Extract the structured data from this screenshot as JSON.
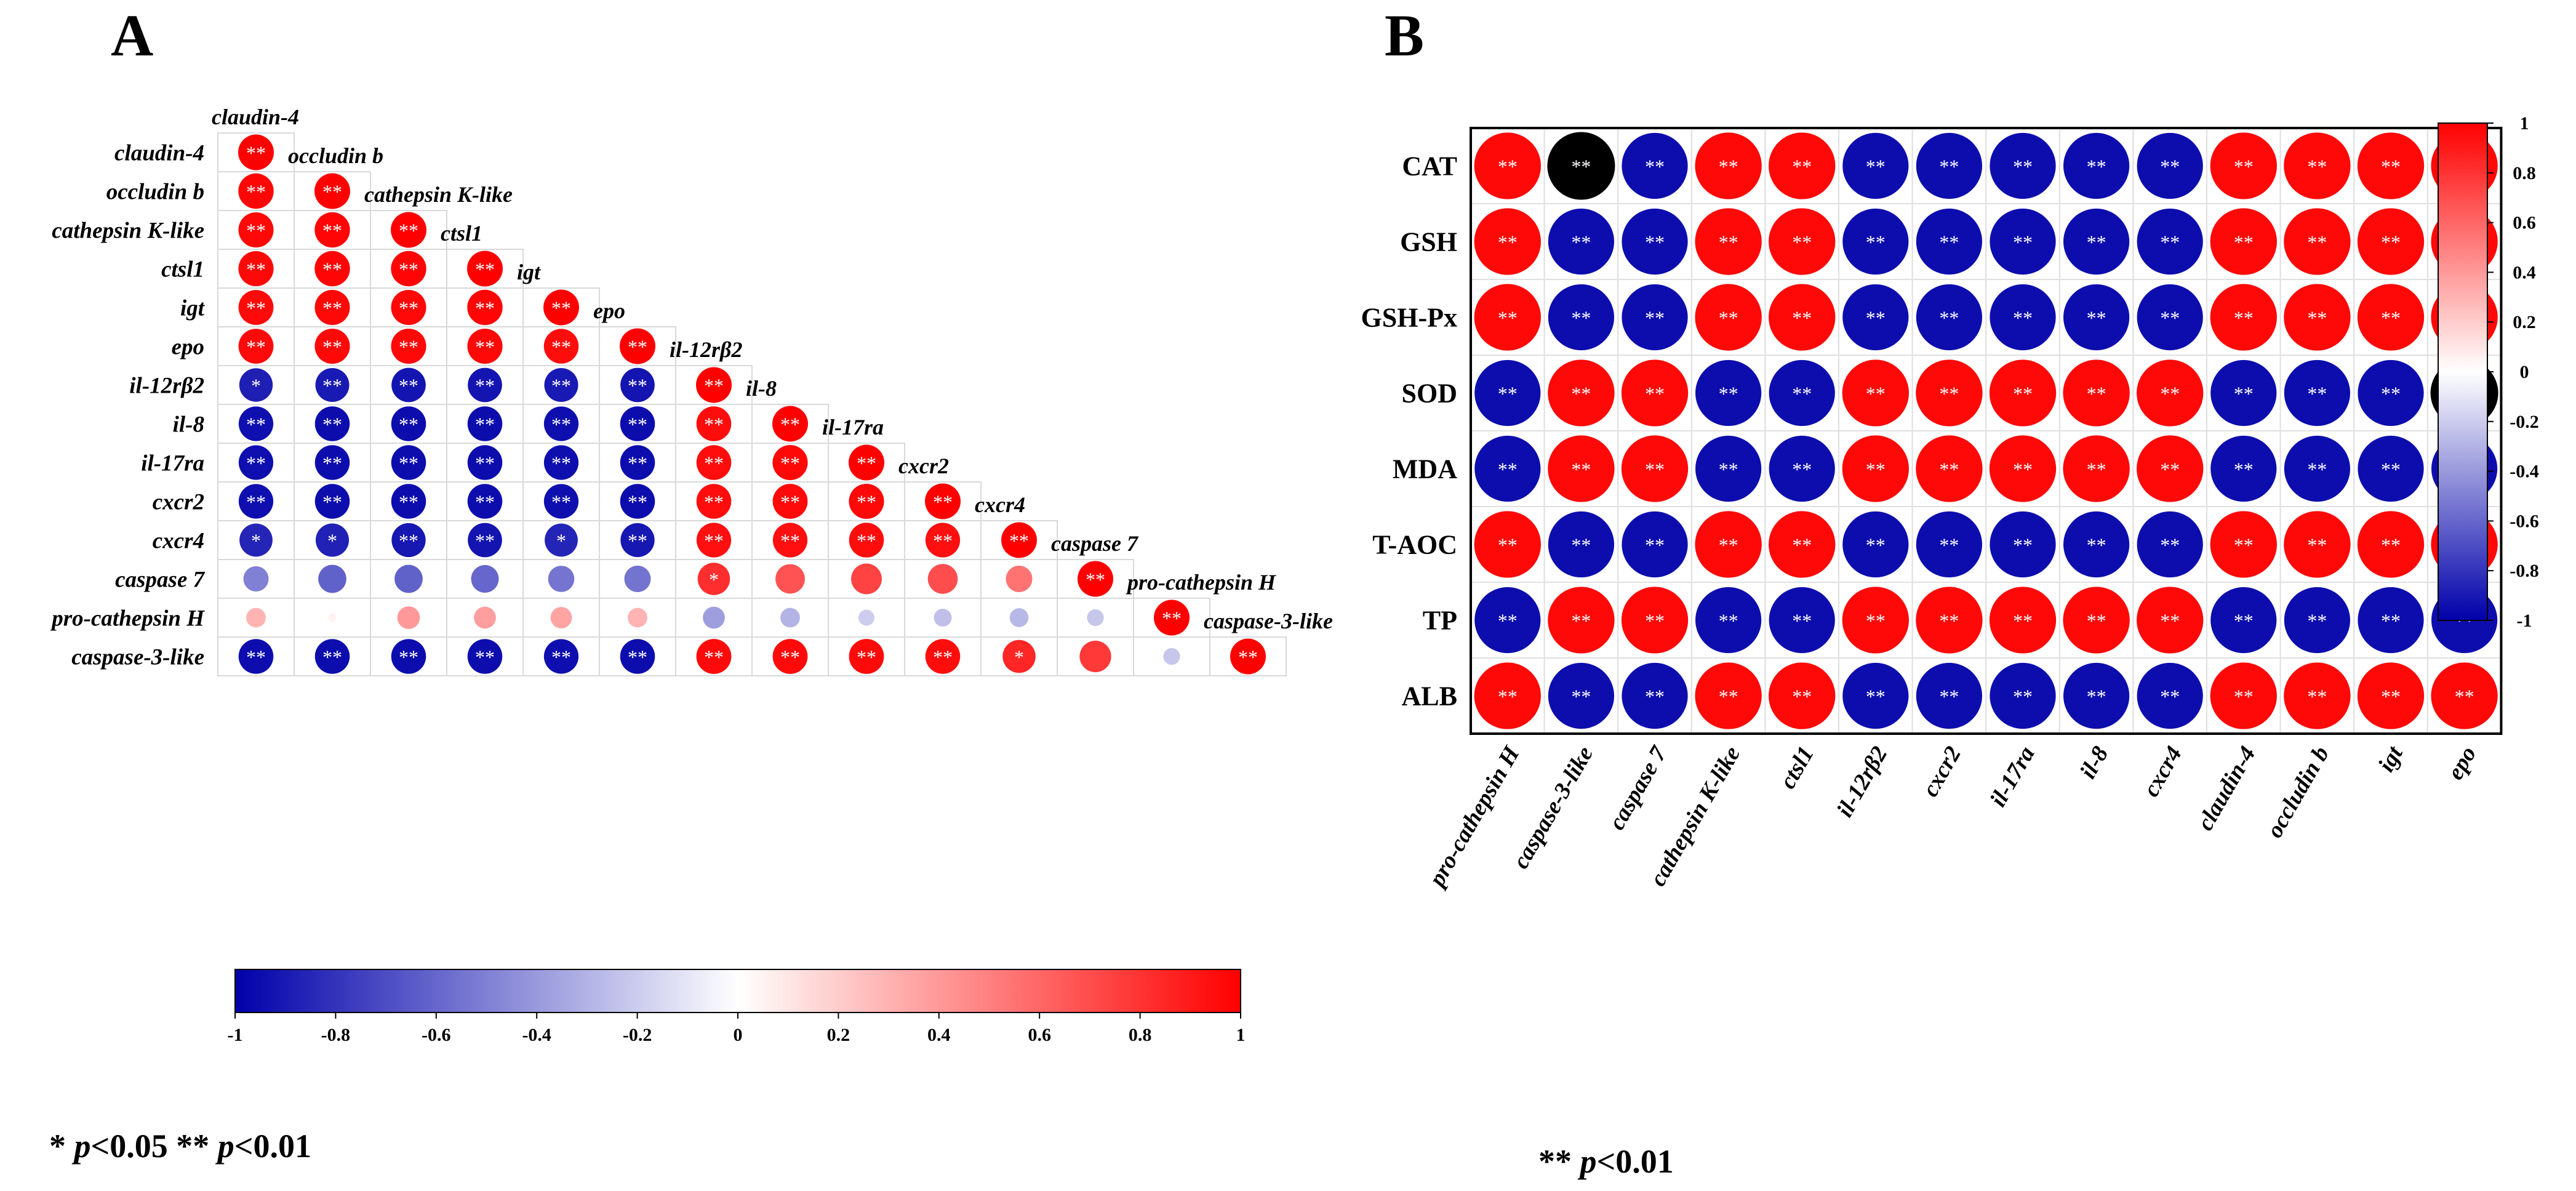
{
  "chart_data": [
    {
      "type": "heatmap",
      "panel_label": "A",
      "shape": "lower-triangle circle correlogram",
      "variables": [
        "claudin-4",
        "occludin b",
        "cathepsin K-like",
        "ctsl1",
        "igt",
        "epo",
        "il-12rβ2",
        "il-8",
        "il-17ra",
        "cxcr2",
        "cxcr4",
        "caspase 7",
        "pro-cathepsin H",
        "caspase-3-like"
      ],
      "values": [
        [
          1.0
        ],
        [
          0.98,
          1.0
        ],
        [
          0.97,
          0.98,
          1.0
        ],
        [
          0.97,
          0.98,
          0.98,
          1.0
        ],
        [
          0.96,
          0.97,
          0.97,
          0.98,
          1.0
        ],
        [
          0.96,
          0.97,
          0.97,
          0.97,
          0.95,
          1.0
        ],
        [
          -0.88,
          -0.9,
          -0.92,
          -0.92,
          -0.9,
          -0.92,
          1.0
        ],
        [
          -0.94,
          -0.95,
          -0.95,
          -0.95,
          -0.94,
          -0.95,
          0.95,
          1.0
        ],
        [
          -0.94,
          -0.95,
          -0.95,
          -0.95,
          -0.94,
          -0.95,
          0.95,
          0.97,
          1.0
        ],
        [
          -0.94,
          -0.95,
          -0.95,
          -0.95,
          -0.94,
          -0.95,
          0.95,
          0.96,
          0.97,
          1.0
        ],
        [
          -0.86,
          -0.87,
          -0.91,
          -0.92,
          -0.86,
          -0.91,
          0.94,
          0.94,
          0.95,
          0.94,
          1.0
        ],
        [
          -0.5,
          -0.62,
          -0.62,
          -0.6,
          -0.54,
          -0.55,
          0.82,
          0.68,
          0.74,
          0.7,
          0.55,
          1.0
        ],
        [
          0.3,
          0.05,
          0.4,
          0.38,
          0.36,
          0.3,
          -0.38,
          -0.3,
          -0.2,
          -0.25,
          -0.28,
          -0.22,
          1.0
        ],
        [
          -0.95,
          -0.95,
          -0.95,
          -0.95,
          -0.94,
          -0.95,
          0.96,
          0.96,
          0.96,
          0.95,
          0.85,
          0.78,
          -0.22,
          1.0
        ]
      ],
      "significance": [
        [
          "**"
        ],
        [
          "**",
          "**"
        ],
        [
          "**",
          "**",
          "**"
        ],
        [
          "**",
          "**",
          "**",
          "**"
        ],
        [
          "**",
          "**",
          "**",
          "**",
          "**"
        ],
        [
          "**",
          "**",
          "**",
          "**",
          "**",
          "**"
        ],
        [
          "*",
          "**",
          "**",
          "**",
          "**",
          "**",
          "**"
        ],
        [
          "**",
          "**",
          "**",
          "**",
          "**",
          "**",
          "**",
          "**"
        ],
        [
          "**",
          "**",
          "**",
          "**",
          "**",
          "**",
          "**",
          "**",
          "**"
        ],
        [
          "**",
          "**",
          "**",
          "**",
          "**",
          "**",
          "**",
          "**",
          "**",
          "**"
        ],
        [
          "*",
          "*",
          "**",
          "**",
          "*",
          "**",
          "**",
          "**",
          "**",
          "**",
          "**"
        ],
        [
          "",
          "",
          "",
          "",
          "",
          "",
          "*",
          "",
          "",
          "",
          "",
          "**"
        ],
        [
          "",
          "",
          "",
          "",
          "",
          "",
          "",
          "",
          "",
          "",
          "",
          "",
          "**"
        ],
        [
          "**",
          "**",
          "**",
          "**",
          "**",
          "**",
          "**",
          "**",
          "**",
          "**",
          "*",
          "",
          "",
          "**"
        ]
      ],
      "colorbar": {
        "orientation": "horizontal",
        "range": [
          -1,
          1
        ],
        "ticks": [
          "-1",
          "-0.8",
          "-0.6",
          "-0.4",
          "-0.2",
          "0",
          "0.2",
          "0.4",
          "0.6",
          "0.8",
          "1"
        ]
      },
      "footnote_stars_1": "*",
      "footnote_p_1": "p",
      "footnote_rest_1": "<0.05",
      "footnote_stars_2": "**",
      "footnote_p_2": "p",
      "footnote_rest_2": "<0.01"
    },
    {
      "type": "heatmap",
      "panel_label": "B",
      "shape": "full grid circle correlogram",
      "rows": [
        "CAT",
        "GSH",
        "GSH-Px",
        "SOD",
        "MDA",
        "T-AOC",
        "TP",
        "ALB"
      ],
      "columns": [
        "pro-cathepsin H",
        "caspase-3-like",
        "caspase 7",
        "cathepsin K-like",
        "ctsl1",
        "il-12rβ2",
        "cxcr2",
        "il-17ra",
        "il-8",
        "cxcr4",
        "claudin-4",
        "occludin b",
        "igt",
        "epo"
      ],
      "values": [
        [
          0.97,
          -1.0,
          -0.95,
          0.97,
          0.97,
          -0.95,
          -0.95,
          -0.95,
          -0.95,
          -0.95,
          0.97,
          0.97,
          0.97,
          0.97
        ],
        [
          0.97,
          -0.95,
          -0.95,
          0.97,
          0.97,
          -0.95,
          -0.95,
          -0.95,
          -0.95,
          -0.95,
          0.97,
          0.97,
          0.97,
          0.97
        ],
        [
          0.97,
          -0.95,
          -0.95,
          0.97,
          0.97,
          -0.95,
          -0.95,
          -0.95,
          -0.95,
          -0.95,
          0.97,
          0.97,
          0.97,
          0.97
        ],
        [
          -0.95,
          0.97,
          0.97,
          -0.95,
          -0.95,
          0.97,
          0.97,
          0.97,
          0.97,
          0.97,
          -0.95,
          -0.95,
          -0.95,
          -1.0
        ],
        [
          -0.95,
          0.97,
          0.97,
          -0.95,
          -0.95,
          0.97,
          0.97,
          0.97,
          0.97,
          0.97,
          -0.95,
          -0.95,
          -0.95,
          -0.95
        ],
        [
          0.97,
          -0.95,
          -0.95,
          0.97,
          0.97,
          -0.95,
          -0.95,
          -0.95,
          -0.95,
          -0.95,
          0.97,
          0.97,
          0.97,
          0.97
        ],
        [
          -0.95,
          0.97,
          0.97,
          -0.95,
          -0.95,
          0.97,
          0.97,
          0.97,
          0.97,
          0.97,
          -0.95,
          -0.95,
          -0.95,
          -0.95
        ],
        [
          0.97,
          -0.95,
          -0.95,
          0.97,
          0.97,
          -0.95,
          -0.95,
          -0.95,
          -0.95,
          -0.95,
          0.97,
          0.97,
          0.97,
          0.97
        ]
      ],
      "black_cells": [
        [
          "CAT",
          "caspase-3-like"
        ],
        [
          "SOD",
          "epo"
        ]
      ],
      "significance_all": "**",
      "colorbar": {
        "orientation": "vertical",
        "range": [
          -1,
          1
        ],
        "ticks": [
          "1",
          "0.8",
          "0.6",
          "0.4",
          "0.2",
          "0",
          "-0.2",
          "-0.4",
          "-0.6",
          "-0.8",
          "-1"
        ]
      },
      "footnote_stars": "**",
      "footnote_p": "p",
      "footnote_rest": "<0.01"
    }
  ]
}
